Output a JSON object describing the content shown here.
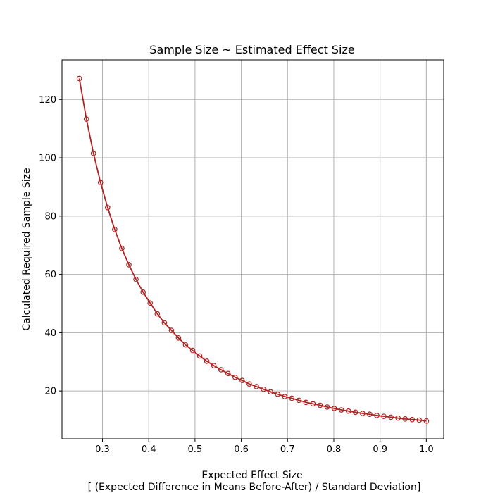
{
  "chart_data": {
    "type": "line",
    "title": "Sample Size ~ Estimated Effect Size",
    "xlabel_line1": "Expected Effect Size",
    "xlabel_line2": "[ (Expected Difference in Means Before-After) / Standard Deviation]",
    "ylabel": "Calculated Required Sample Size",
    "xlim": [
      0.2125,
      1.0375
    ],
    "ylim": [
      3.6,
      133.6
    ],
    "x_ticks": [
      0.3,
      0.4,
      0.5,
      0.6,
      0.7,
      0.8,
      0.9,
      1.0
    ],
    "x_tick_labels": [
      "0.3",
      "0.4",
      "0.5",
      "0.6",
      "0.7",
      "0.8",
      "0.9",
      "1.0"
    ],
    "y_ticks": [
      20,
      40,
      60,
      80,
      100,
      120
    ],
    "y_tick_labels": [
      "20",
      "40",
      "60",
      "80",
      "100",
      "120"
    ],
    "grid": true,
    "line_color": "#b22222",
    "series": [
      {
        "x": [
          0.25,
          0.2653,
          0.2806,
          0.2959,
          0.3112,
          0.3265,
          0.3418,
          0.3571,
          0.3724,
          0.3878,
          0.4031,
          0.4184,
          0.4337,
          0.449,
          0.4643,
          0.4796,
          0.4949,
          0.5102,
          0.5255,
          0.5408,
          0.5561,
          0.5714,
          0.5867,
          0.602,
          0.6173,
          0.6327,
          0.648,
          0.6633,
          0.6786,
          0.6939,
          0.7092,
          0.7245,
          0.7398,
          0.7551,
          0.7704,
          0.7857,
          0.801,
          0.8163,
          0.8316,
          0.8469,
          0.8622,
          0.8776,
          0.8929,
          0.9082,
          0.9235,
          0.9388,
          0.9541,
          0.9694,
          0.9847,
          1.0
        ],
        "values": [
          127.2,
          113.3,
          101.5,
          91.5,
          82.9,
          75.4,
          68.9,
          63.3,
          58.3,
          53.9,
          50.2,
          46.5,
          43.4,
          40.8,
          38.2,
          35.8,
          33.9,
          32.0,
          30.2,
          28.7,
          27.3,
          26.0,
          24.7,
          23.6,
          22.4,
          21.5,
          20.6,
          19.7,
          18.9,
          18.1,
          17.5,
          16.8,
          16.1,
          15.6,
          15.1,
          14.5,
          14.0,
          13.5,
          13.1,
          12.7,
          12.3,
          12.0,
          11.6,
          11.3,
          11.0,
          10.7,
          10.4,
          10.2,
          10.0,
          9.7
        ]
      }
    ]
  }
}
